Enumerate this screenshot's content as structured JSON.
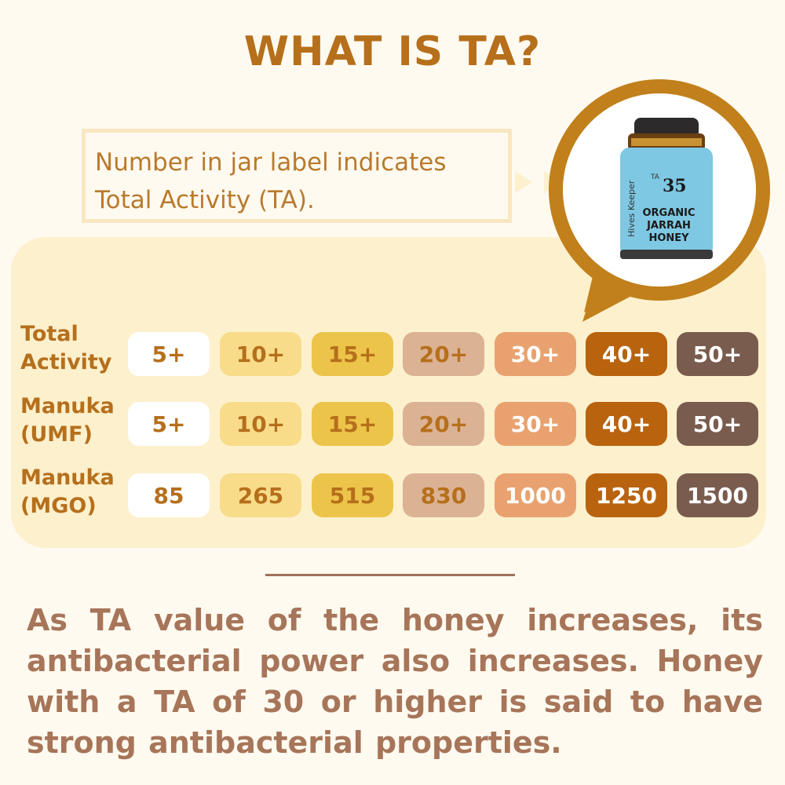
{
  "title": "WHAT IS TA?",
  "note": {
    "line1": "Number in jar label indicates",
    "line2": "Total Activity (TA)."
  },
  "jar": {
    "brand": "Hives Keeper",
    "ta_prefix": "TA",
    "ta_value": "35",
    "label_line1": "ORGANIC",
    "label_line2": "JARRAH",
    "label_line3": "HONEY"
  },
  "table": {
    "rows": [
      {
        "label_line1": "Total",
        "label_line2": "Activity",
        "cells": [
          "5+",
          "10+",
          "15+",
          "20+",
          "30+",
          "40+",
          "50+"
        ]
      },
      {
        "label_line1": "Manuka",
        "label_line2": "(UMF)",
        "cells": [
          "5+",
          "10+",
          "15+",
          "20+",
          "30+",
          "40+",
          "50+"
        ]
      },
      {
        "label_line1": "Manuka",
        "label_line2": "(MGO)",
        "cells": [
          "85",
          "265",
          "515",
          "830",
          "1000",
          "1250",
          "1500"
        ]
      }
    ],
    "column_colors": [
      "#ffffff",
      "#f8dc8a",
      "#ecc449",
      "#dcb294",
      "#e9a26f",
      "#b9630f",
      "#7a5c4e"
    ],
    "column_text_colors": [
      "#b66f1b",
      "#b66f1b",
      "#b66f1b",
      "#b66f1b",
      "#ffffff",
      "#ffffff",
      "#ffffff"
    ]
  },
  "summary": "As TA value of the honey increases, its antibacterial power also increases. Honey with a TA of 30 or higher is said to have strong antibacterial properties.",
  "colors": {
    "title": "#b66f1b",
    "accent": "#c1801b",
    "panel": "#fdf0cd",
    "summary": "#a77559"
  }
}
